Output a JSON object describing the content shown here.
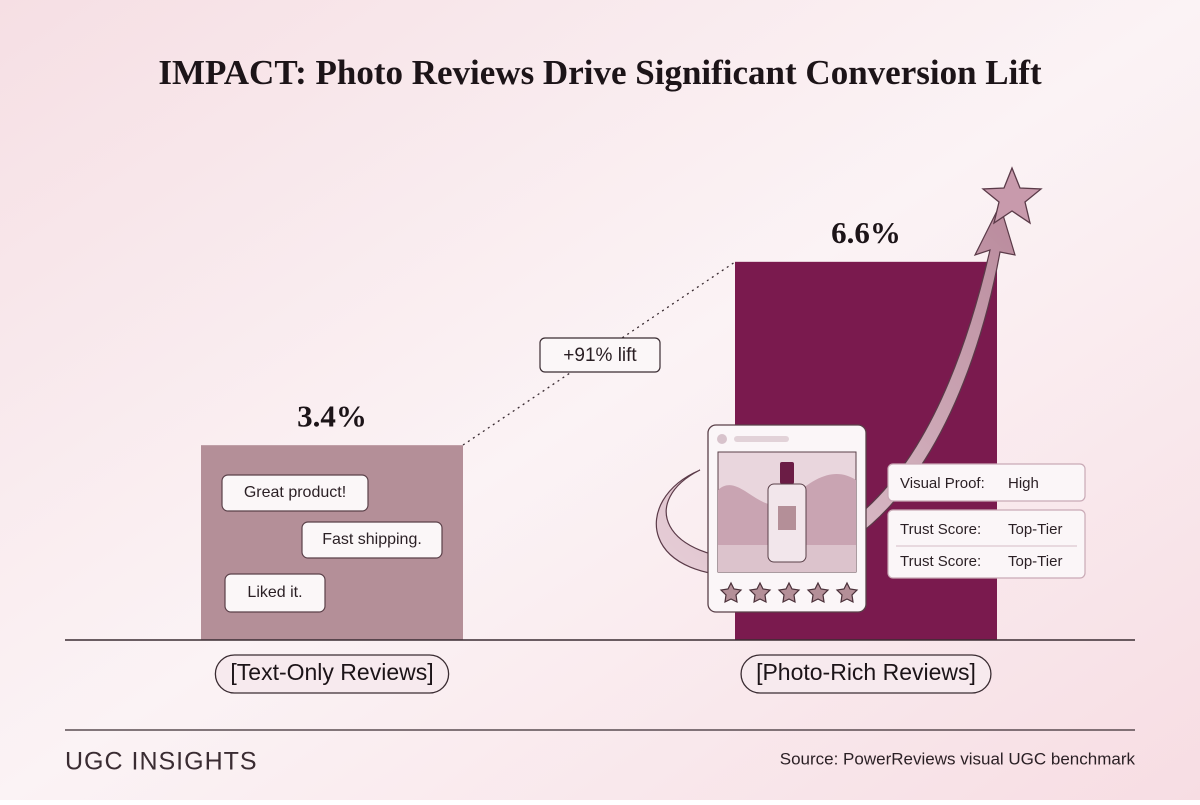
{
  "chart_data": {
    "type": "bar",
    "title": "IMPACT: Photo Reviews Drive Significant Conversion Lift",
    "categories": [
      "[Text-Only Reviews]",
      "[Photo-Rich Reviews]"
    ],
    "values": [
      3.4,
      6.6
    ],
    "value_labels": [
      "3.4%",
      "6.6%"
    ],
    "colors": [
      "#b48f98",
      "#7a1a4e"
    ],
    "annotation": "+91% lift",
    "text_bubbles": [
      "Great product!",
      "Fast shipping.",
      "Liked it."
    ],
    "review_card": [
      {
        "label": "Visual Proof:",
        "value": "High"
      },
      {
        "label": "Trust Score:",
        "value": "Top-Tier"
      },
      {
        "label": "Trust Score:",
        "value": "Top-Tier"
      }
    ],
    "brand": "UGC INSIGHTS",
    "source": "Source: PowerReviews visual UGC benchmark"
  }
}
